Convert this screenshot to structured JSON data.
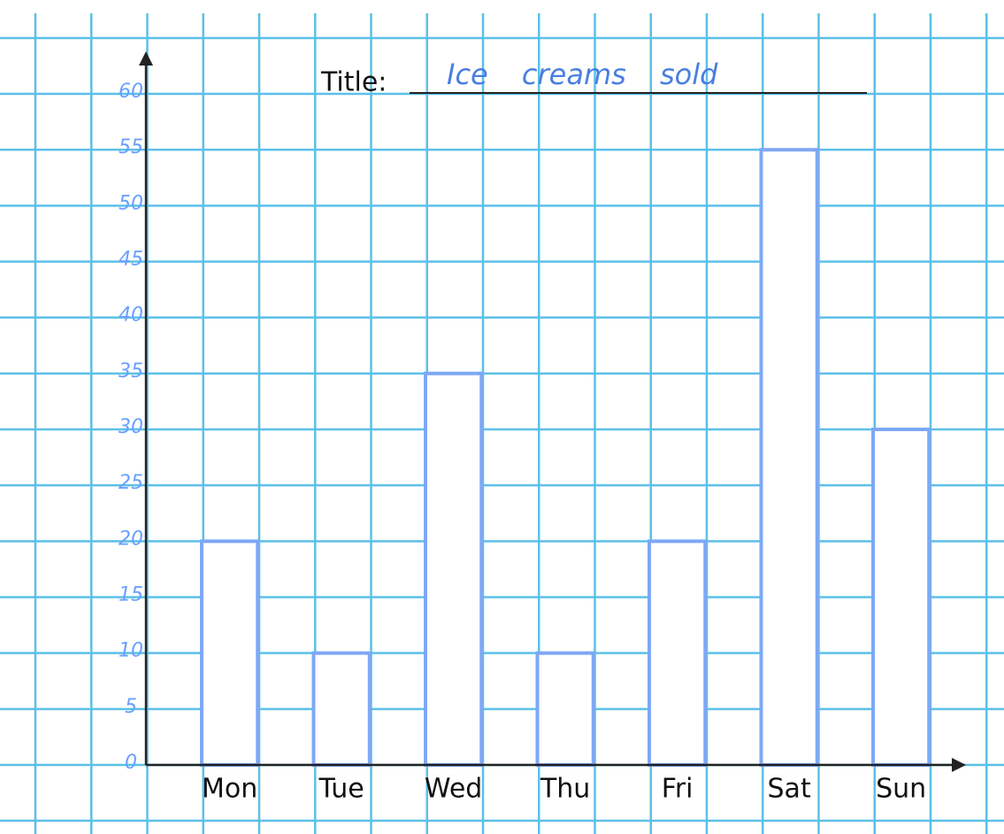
{
  "chart_data": {
    "type": "bar",
    "title_label": "Title:",
    "title": "Ice creams sold",
    "categories": [
      "Mon",
      "Tue",
      "Wed",
      "Thu",
      "Fri",
      "Sat",
      "Sun"
    ],
    "values": [
      20,
      10,
      35,
      10,
      20,
      55,
      30
    ],
    "color": "#7ea8f5",
    "ylim": [
      0,
      60
    ],
    "yticks": [
      0,
      5,
      10,
      15,
      20,
      25,
      30,
      35,
      40,
      45,
      50,
      55,
      60
    ],
    "grid": true
  }
}
